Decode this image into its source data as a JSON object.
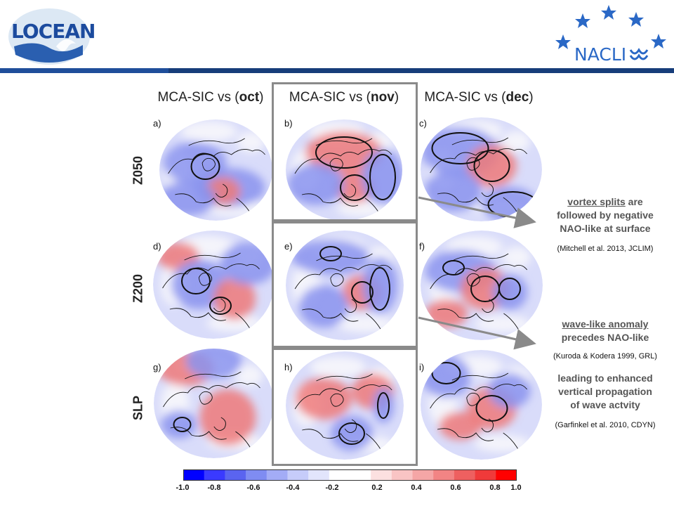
{
  "header": {
    "left_logo_text": "LOCEAN",
    "right_logo_text": "NACLI"
  },
  "columns": [
    {
      "prefix": "MCA-SIC vs (",
      "month": "oct",
      "suffix": ")"
    },
    {
      "prefix": "MCA-SIC vs (",
      "month": "nov",
      "suffix": ")"
    },
    {
      "prefix": "MCA-SIC vs (",
      "month": "dec",
      "suffix": ")"
    }
  ],
  "rows": [
    "Z050",
    "Z200",
    "SLP"
  ],
  "panels": [
    "a)",
    "b)",
    "c)",
    "d)",
    "e)",
    "f)",
    "g)",
    "h)",
    "i)"
  ],
  "notes": {
    "note1_underlined": "vortex splits",
    "note1_rest_a": " are",
    "note1_rest_b": "followed by negative",
    "note1_rest_c": "NAO-like at surface",
    "cite1": "(Mitchell et al. 2013, JCLIM)",
    "note2_underlined": "wave-like anomaly",
    "note2_rest": "precedes NAO-like",
    "cite2": "(Kuroda & Kodera 1999, GRL)",
    "note3_a": "leading to enhanced",
    "note3_b": "vertical propagation",
    "note3_c": "of wave actvity",
    "cite3": "(Garfinkel et al. 2010, CDYN)"
  },
  "colorbar": {
    "ticks": [
      "-1.0",
      "-0.8",
      "-0.6",
      "-0.4",
      "-0.2",
      "0.2",
      "0.4",
      "0.6",
      "0.8",
      "1.0"
    ],
    "colors": [
      "#0000ff",
      "#3a3aff",
      "#5a64f0",
      "#7f8cf2",
      "#a3acf6",
      "#c6ccfa",
      "#e2e5fc",
      "#ffffff",
      "#ffffff",
      "#fce0e0",
      "#f9c4c4",
      "#f5a6a6",
      "#f28484",
      "#ee6060",
      "#f03a3a",
      "#ff0000"
    ]
  }
}
